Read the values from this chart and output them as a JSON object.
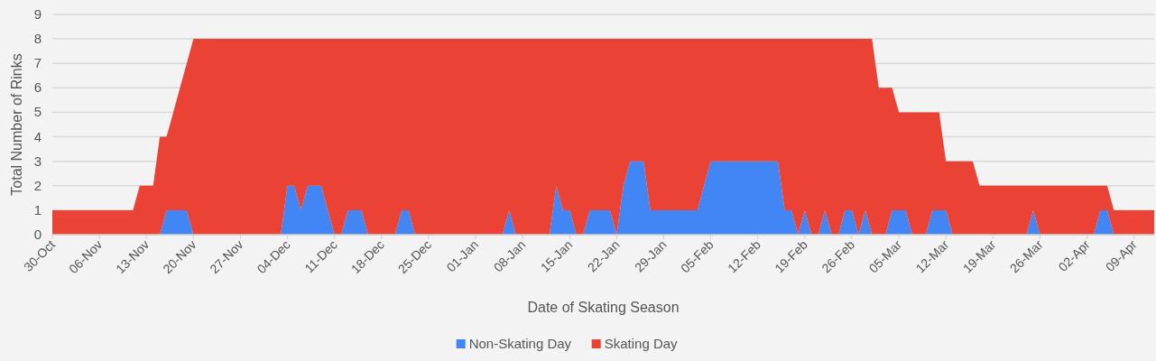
{
  "chart_data": {
    "type": "area",
    "stacked": true,
    "xlabel": "Date of Skating Season",
    "ylabel": "Total Number of Rinks",
    "legend": "bottom",
    "grid": "y",
    "categories": [
      "30-Oct",
      null,
      null,
      null,
      null,
      null,
      null,
      "06-Nov",
      null,
      null,
      null,
      null,
      null,
      null,
      "13-Nov",
      null,
      null,
      null,
      null,
      null,
      null,
      "20-Nov",
      null,
      null,
      null,
      null,
      null,
      null,
      "27-Nov",
      null,
      null,
      null,
      null,
      null,
      null,
      "04-Dec",
      null,
      null,
      null,
      null,
      null,
      null,
      "11-Dec",
      null,
      null,
      null,
      null,
      null,
      null,
      "18-Dec",
      null,
      null,
      null,
      null,
      null,
      null,
      "25-Dec",
      null,
      null,
      null,
      null,
      null,
      null,
      "01-Jan",
      null,
      null,
      null,
      null,
      null,
      null,
      "08-Jan",
      null,
      null,
      null,
      null,
      null,
      null,
      "15-Jan",
      null,
      null,
      null,
      null,
      null,
      null,
      "22-Jan",
      null,
      null,
      null,
      null,
      null,
      null,
      "29-Jan",
      null,
      null,
      null,
      null,
      null,
      null,
      "05-Feb",
      null,
      null,
      null,
      null,
      null,
      null,
      "12-Feb",
      null,
      null,
      null,
      null,
      null,
      null,
      "19-Feb",
      null,
      null,
      null,
      null,
      null,
      null,
      "26-Feb",
      null,
      null,
      null,
      null,
      null,
      null,
      "05-Mar",
      null,
      null,
      null,
      null,
      null,
      null,
      "12-Mar",
      null,
      null,
      null,
      null,
      null,
      null,
      "19-Mar",
      null,
      null,
      null,
      null,
      null,
      null,
      "26-Mar",
      null,
      null,
      null,
      null,
      null,
      null,
      "02-Apr",
      null,
      null,
      null,
      null,
      null,
      null,
      "09-Apr",
      null,
      null,
      null
    ],
    "series": [
      {
        "name": "Non-Skating Day",
        "color": "#4285f4",
        "values": [
          0,
          0,
          0,
          0,
          0,
          0,
          0,
          0,
          0,
          0,
          0,
          0,
          0,
          0,
          0,
          0,
          0,
          1,
          1,
          1,
          1,
          0,
          0,
          0,
          0,
          0,
          0,
          0,
          0,
          0,
          0,
          0,
          0,
          0,
          0,
          2,
          2,
          1,
          2,
          2,
          2,
          1,
          0,
          0,
          1,
          1,
          1,
          0,
          0,
          0,
          0,
          0,
          1,
          1,
          0,
          0,
          0,
          0,
          0,
          0,
          0,
          0,
          0,
          0,
          0,
          0,
          0,
          0,
          1,
          0,
          0,
          0,
          0,
          0,
          0,
          2,
          1,
          1,
          0,
          0,
          1,
          1,
          1,
          1,
          0,
          2,
          3,
          3,
          3,
          1,
          1,
          1,
          1,
          1,
          1,
          1,
          1,
          2,
          3,
          3,
          3,
          3,
          3,
          3,
          3,
          3,
          3,
          3,
          3,
          1,
          1,
          0,
          1,
          0,
          0,
          1,
          0,
          0,
          1,
          1,
          0,
          1,
          0,
          0,
          0,
          1,
          1,
          1,
          0,
          0,
          0,
          1,
          1,
          1,
          0,
          0,
          0,
          0,
          0,
          0,
          0,
          0,
          0,
          0,
          0,
          0,
          1,
          0,
          0,
          0,
          0,
          0,
          0,
          0,
          0,
          0,
          1,
          1,
          0,
          0,
          0,
          0,
          0,
          0,
          0
        ]
      },
      {
        "name": "Skating Day",
        "color": "#ea4335",
        "values": [
          1,
          1,
          1,
          1,
          1,
          1,
          1,
          1,
          1,
          1,
          1,
          1,
          1,
          2,
          2,
          2,
          4,
          3,
          4,
          5,
          6,
          8,
          8,
          8,
          8,
          8,
          8,
          8,
          8,
          8,
          8,
          8,
          8,
          8,
          8,
          6,
          6,
          7,
          6,
          6,
          6,
          7,
          8,
          8,
          7,
          7,
          7,
          8,
          8,
          8,
          8,
          8,
          7,
          7,
          8,
          8,
          8,
          8,
          8,
          8,
          8,
          8,
          8,
          8,
          8,
          8,
          8,
          8,
          7,
          8,
          8,
          8,
          8,
          8,
          8,
          6,
          7,
          7,
          8,
          8,
          7,
          7,
          7,
          7,
          8,
          6,
          5,
          5,
          5,
          7,
          7,
          7,
          7,
          7,
          7,
          7,
          7,
          6,
          5,
          5,
          5,
          5,
          5,
          5,
          5,
          5,
          5,
          5,
          5,
          7,
          7,
          8,
          7,
          8,
          8,
          7,
          8,
          8,
          7,
          7,
          8,
          7,
          8,
          6,
          6,
          5,
          4,
          4,
          5,
          5,
          5,
          4,
          4,
          2,
          3,
          3,
          3,
          3,
          2,
          2,
          2,
          2,
          2,
          2,
          2,
          2,
          1,
          2,
          2,
          2,
          2,
          2,
          2,
          2,
          2,
          2,
          1,
          1,
          1,
          1,
          1,
          1,
          1,
          1,
          1
        ]
      }
    ],
    "ylim": [
      0,
      9
    ],
    "yticks": [
      0,
      1,
      2,
      3,
      4,
      5,
      6,
      7,
      8,
      9
    ]
  }
}
